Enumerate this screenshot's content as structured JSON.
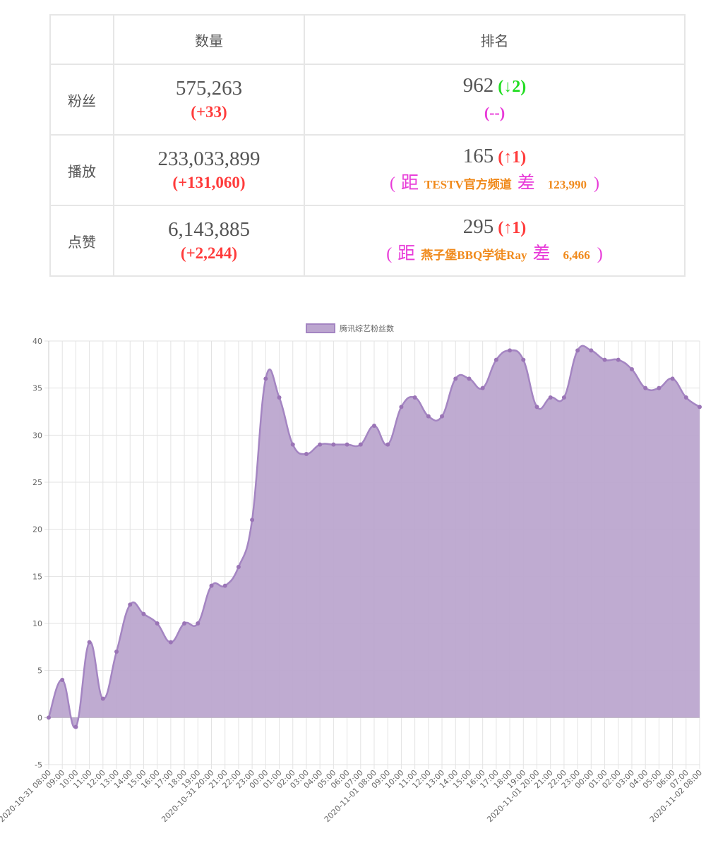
{
  "table": {
    "headers": [
      "数量",
      "排名"
    ],
    "rows": [
      {
        "label": "粉丝",
        "value": "575,263",
        "delta": "(+33)",
        "rank": "962",
        "rank_change": "(↓2)",
        "rank_dir": "down",
        "gap_text": "(--)"
      },
      {
        "label": "播放",
        "value": "233,033,899",
        "delta": "(+131,060)",
        "rank": "165",
        "rank_change": "(↑1)",
        "rank_dir": "up",
        "gap_open": "(",
        "gap_word1": "距",
        "gap_name": "TESTV官方频道",
        "gap_word2": "差",
        "gap_num": "123,990",
        "gap_close": ")"
      },
      {
        "label": "点赞",
        "value": "6,143,885",
        "delta": "(+2,244)",
        "rank": "295",
        "rank_change": "(↑1)",
        "rank_dir": "up",
        "gap_open": "(",
        "gap_word1": "距",
        "gap_name": "燕子堡BBQ学徒Ray",
        "gap_word2": "差",
        "gap_num": "6,466",
        "gap_close": ")"
      }
    ]
  },
  "chart_data": {
    "type": "area",
    "title": "",
    "legend": {
      "label": "腾讯综艺粉丝数",
      "position": "top-center"
    },
    "series": [
      {
        "name": "腾讯综艺粉丝数",
        "values": [
          0,
          4,
          -1,
          8,
          2,
          7,
          12,
          11,
          10,
          8,
          10,
          10,
          14,
          14,
          16,
          21,
          36,
          34,
          29,
          28,
          29,
          29,
          29,
          29,
          31,
          29,
          33,
          34,
          32,
          32,
          36,
          36,
          35,
          38,
          39,
          38,
          33,
          34,
          34,
          39,
          39,
          38,
          38,
          37,
          35,
          35,
          36,
          34,
          33
        ]
      }
    ],
    "x_labels": [
      "2020-10-31 08:00",
      "09:00",
      "10:00",
      "11:00",
      "12:00",
      "13:00",
      "14:00",
      "15:00",
      "16:00",
      "17:00",
      "18:00",
      "19:00",
      "2020-10-31 20:00",
      "21:00",
      "22:00",
      "23:00",
      "00:00",
      "01:00",
      "02:00",
      "03:00",
      "04:00",
      "05:00",
      "06:00",
      "07:00",
      "2020-11-01 08:00",
      "09:00",
      "10:00",
      "11:00",
      "12:00",
      "13:00",
      "14:00",
      "15:00",
      "16:00",
      "17:00",
      "18:00",
      "19:00",
      "2020-11-01 20:00",
      "21:00",
      "22:00",
      "23:00",
      "00:00",
      "01:00",
      "02:00",
      "03:00",
      "04:00",
      "05:00",
      "06:00",
      "07:00",
      "2020-11-02 08:00"
    ],
    "ylim": [
      -5,
      40
    ],
    "y_ticks": [
      -5,
      0,
      5,
      10,
      15,
      20,
      25,
      30,
      35,
      40
    ],
    "grid": true,
    "colors": {
      "fill": "#bca6cf",
      "line": "#a485c2",
      "point": "#9a74b6",
      "grid": "#e3e3e3",
      "zero": "#bbbbbb",
      "text": "#666666"
    }
  }
}
